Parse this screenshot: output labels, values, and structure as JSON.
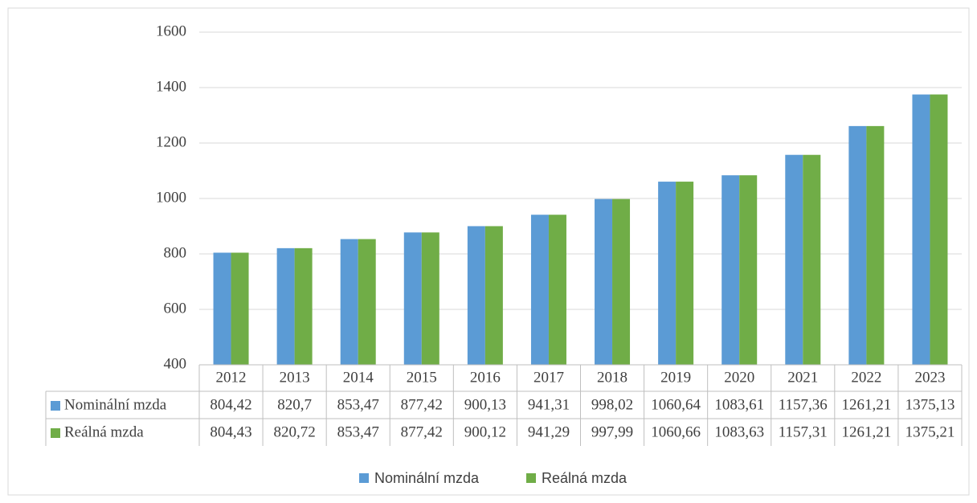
{
  "chart_data": {
    "type": "bar",
    "categories": [
      "2012",
      "2013",
      "2014",
      "2015",
      "2016",
      "2017",
      "2018",
      "2019",
      "2020",
      "2021",
      "2022",
      "2023"
    ],
    "series": [
      {
        "name": "Nominální mzda",
        "color": "#5b9bd5",
        "values": [
          804.42,
          820.7,
          853.47,
          877.42,
          900.13,
          941.31,
          998.02,
          1060.64,
          1083.61,
          1157.36,
          1261.21,
          1375.13
        ],
        "value_labels": [
          "804,42",
          "820,7",
          "853,47",
          "877,42",
          "900,13",
          "941,31",
          "998,02",
          "1060,64",
          "1083,61",
          "1157,36",
          "1261,21",
          "1375,13"
        ]
      },
      {
        "name": "Reálná mzda",
        "color": "#70ad47",
        "values": [
          804.43,
          820.72,
          853.47,
          877.42,
          900.12,
          941.29,
          997.99,
          1060.66,
          1083.63,
          1157.31,
          1261.21,
          1375.21
        ],
        "value_labels": [
          "804,43",
          "820,72",
          "853,47",
          "877,42",
          "900,12",
          "941,29",
          "997,99",
          "1060,66",
          "1083,63",
          "1157,31",
          "1261,21",
          "1375,21"
        ]
      }
    ],
    "ylim": [
      400,
      1600
    ],
    "yticks": [
      400,
      600,
      800,
      1000,
      1200,
      1400,
      1600
    ],
    "grid": true,
    "legend": "bottom"
  }
}
